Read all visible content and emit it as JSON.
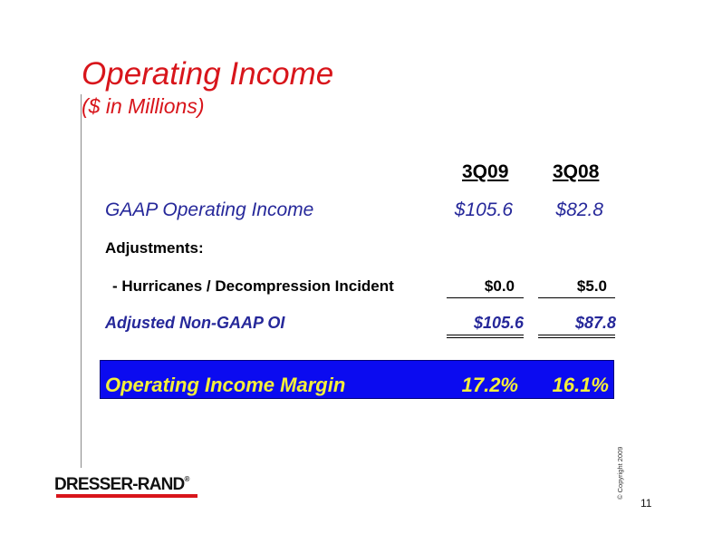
{
  "slide": {
    "title": "Operating Income",
    "subtitle": "($ in Millions)",
    "page_number": "11",
    "copyright": "© Copyright 2009"
  },
  "table": {
    "columns": [
      "3Q09",
      "3Q08"
    ],
    "gaap": {
      "label": "GAAP Operating Income",
      "values": [
        "$105.6",
        "$82.8"
      ]
    },
    "adjustments_header": "Adjustments:",
    "hurricanes": {
      "label": "-  Hurricanes / Decompression Incident",
      "values": [
        "$0.0",
        "$5.0"
      ]
    },
    "adjusted": {
      "label": "Adjusted Non-GAAP OI",
      "values": [
        "$105.6",
        "$87.8"
      ]
    },
    "margin": {
      "label": "Operating Income Margin",
      "values": [
        "17.2%",
        "16.1%"
      ]
    }
  },
  "logo": {
    "text": "DRESSER-RAND",
    "mark": "®"
  },
  "colors": {
    "title_red": "#d8151b",
    "label_blue": "#26289a",
    "highlight_blue": "#0b0bf0",
    "highlight_text": "#f4ef3a"
  }
}
